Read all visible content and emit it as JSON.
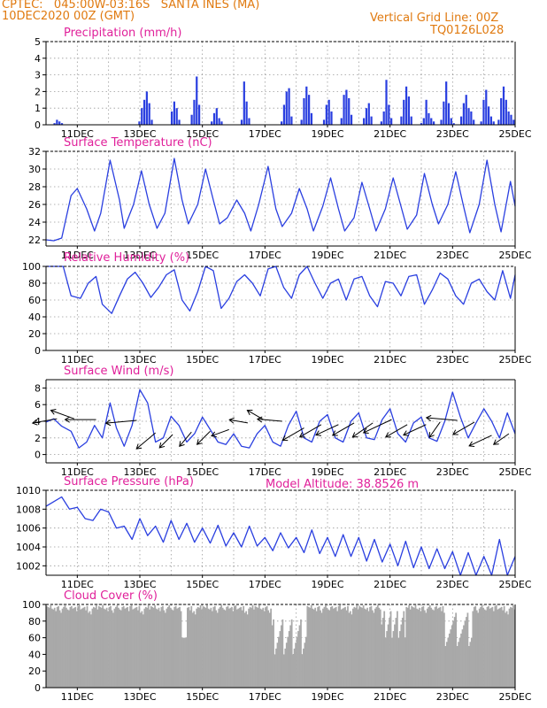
{
  "header": {
    "line1_left": "CPTEC:   045:00W-03:16S   SANTA INES (MA)",
    "line2_left": "10DEC2020 00Z (GMT)",
    "line1_right": "Vertical Grid Line: 00Z",
    "line2_right": "TQ0126L028",
    "model_altitude": "Model Altitude: 38.8526 m"
  },
  "colors": {
    "header": "#e07a10",
    "title": "#e0209a",
    "series": "#2a3fe0",
    "cloud": "#a9a9a9",
    "axis": "#000000",
    "grid": "#9a9a9a"
  },
  "x_ticks": [
    "11DEC",
    "13DEC",
    "15DEC",
    "17DEC",
    "19DEC",
    "21DEC",
    "23DEC",
    "25DEC"
  ],
  "chart_data": [
    {
      "type": "bar",
      "title": "Precipitation (mm/h)",
      "ylim": [
        0,
        5
      ],
      "yticks": [
        "0",
        "1",
        "2",
        "3",
        "4",
        "5"
      ],
      "x_start": "10DEC2020 00Z",
      "x_end": "25DEC2020 00Z",
      "step_hours": 3,
      "values": [
        0,
        0,
        0,
        0.1,
        0.3,
        0.2,
        0.1,
        0,
        0,
        0,
        0,
        0,
        0,
        0,
        0,
        0,
        0,
        0,
        0,
        0,
        0,
        0,
        0,
        0,
        0,
        0,
        0,
        0,
        0,
        0,
        0,
        0,
        0,
        0,
        0,
        0,
        0,
        0.2,
        1.0,
        1.5,
        2.0,
        1.3,
        0.3,
        0,
        0,
        0,
        0,
        0,
        0,
        0,
        0.8,
        1.4,
        1.0,
        0.3,
        0,
        0,
        0,
        0,
        0.6,
        1.5,
        2.9,
        1.2,
        0,
        0,
        0,
        0,
        0.2,
        0.7,
        1.0,
        0.4,
        0.2,
        0,
        0,
        0,
        0,
        0,
        0,
        0,
        0.3,
        2.6,
        1.4,
        0.4,
        0,
        0,
        0,
        0,
        0,
        0,
        0,
        0,
        0,
        0,
        0,
        0,
        0.2,
        1.2,
        2.0,
        2.2,
        0.5,
        0,
        0,
        0,
        0.3,
        1.6,
        2.3,
        1.8,
        0.7,
        0,
        0,
        0,
        0,
        0.3,
        1.2,
        1.5,
        0.8,
        0,
        0,
        0,
        0.4,
        1.8,
        2.1,
        1.6,
        0.6,
        0,
        0,
        0,
        0,
        0.4,
        1.0,
        1.3,
        0.5,
        0,
        0,
        0,
        0.2,
        0.8,
        2.7,
        1.2,
        0.4,
        0,
        0,
        0,
        0.5,
        1.5,
        2.3,
        1.7,
        0.5,
        0,
        0,
        0,
        0.1,
        0.4,
        1.5,
        0.7,
        0.4,
        0.2,
        0,
        0,
        0.3,
        1.4,
        2.6,
        1.3,
        0.4,
        0.1,
        0,
        0,
        0.5,
        1.3,
        1.8,
        1.0,
        0.8,
        0.3,
        0,
        0,
        0.2,
        1.5,
        2.1,
        1.1,
        0.5,
        0.2,
        0,
        0.3,
        1.6,
        2.3,
        1.5,
        0.8,
        0.6,
        0.3
      ]
    },
    {
      "type": "line",
      "title": "Surface Temperature (nC)",
      "ylim": [
        21.3,
        32
      ],
      "yticks": [
        "22",
        "24",
        "26",
        "28",
        "30",
        "32"
      ],
      "x": [
        0,
        0.25,
        0.5,
        0.8,
        1.0,
        1.3,
        1.55,
        1.75,
        2.05,
        2.35,
        2.5,
        2.8,
        3.05,
        3.3,
        3.55,
        3.8,
        4.1,
        4.35,
        4.55,
        4.85,
        5.1,
        5.35,
        5.55,
        5.8,
        6.1,
        6.35,
        6.55,
        6.8,
        7.1,
        7.35,
        7.55,
        7.85,
        8.1,
        8.35,
        8.55,
        8.85,
        9.1,
        9.35,
        9.55,
        9.85,
        10.1,
        10.35,
        10.55,
        10.85,
        11.1,
        11.35,
        11.55,
        11.85,
        12.1,
        12.35,
        12.55,
        12.85,
        13.1,
        13.35,
        13.55,
        13.85,
        14.1,
        14.35,
        14.55,
        14.85,
        15.0
      ],
      "values": [
        22.0,
        21.9,
        22.2,
        27.0,
        27.8,
        25.5,
        23.0,
        25.0,
        31.0,
        26.5,
        23.3,
        26.0,
        29.8,
        26.0,
        23.3,
        25.0,
        31.2,
        26.5,
        23.8,
        26.0,
        30.0,
        26.5,
        23.8,
        24.5,
        26.5,
        25.0,
        23.0,
        26.0,
        30.3,
        25.5,
        23.5,
        25.0,
        27.8,
        25.5,
        23.0,
        25.8,
        29.0,
        25.5,
        23.0,
        24.5,
        28.5,
        25.5,
        23.0,
        25.5,
        29.0,
        25.8,
        23.2,
        24.8,
        29.5,
        26.0,
        23.8,
        26.0,
        29.7,
        25.8,
        22.8,
        26.0,
        31.0,
        26.0,
        22.9,
        28.6,
        25.8
      ]
    },
    {
      "type": "line",
      "title": "Relative Humidity (%)",
      "ylim": [
        0,
        100
      ],
      "yticks": [
        "0",
        "20",
        "40",
        "60",
        "80",
        "100"
      ],
      "x": [
        0,
        0.3,
        0.55,
        0.8,
        1.1,
        1.35,
        1.6,
        1.8,
        2.1,
        2.35,
        2.6,
        2.85,
        3.1,
        3.35,
        3.6,
        3.85,
        4.1,
        4.35,
        4.6,
        4.85,
        5.1,
        5.35,
        5.6,
        5.85,
        6.1,
        6.35,
        6.6,
        6.85,
        7.1,
        7.35,
        7.6,
        7.85,
        8.1,
        8.35,
        8.6,
        8.85,
        9.1,
        9.35,
        9.6,
        9.85,
        10.1,
        10.35,
        10.6,
        10.85,
        11.1,
        11.35,
        11.6,
        11.85,
        12.1,
        12.35,
        12.6,
        12.85,
        13.1,
        13.35,
        13.6,
        13.85,
        14.1,
        14.35,
        14.6,
        14.85,
        15.0
      ],
      "values": [
        100,
        100,
        100,
        65,
        62,
        80,
        88,
        55,
        44,
        65,
        85,
        93,
        80,
        63,
        75,
        90,
        96,
        60,
        47,
        70,
        100,
        95,
        50,
        62,
        82,
        90,
        80,
        65,
        97,
        100,
        75,
        62,
        90,
        100,
        80,
        62,
        80,
        85,
        60,
        85,
        88,
        65,
        52,
        82,
        80,
        65,
        88,
        90,
        55,
        72,
        92,
        85,
        65,
        55,
        80,
        85,
        70,
        60,
        95,
        62,
        90
      ]
    },
    {
      "type": "line",
      "title": "Surface Wind (m/s)",
      "ylim": [
        -1,
        9
      ],
      "yticks": [
        "0",
        "2",
        "4",
        "6",
        "8"
      ],
      "x": [
        0,
        0.25,
        0.5,
        0.8,
        1.05,
        1.3,
        1.55,
        1.8,
        2.05,
        2.25,
        2.5,
        2.75,
        3.0,
        3.25,
        3.5,
        3.75,
        4.0,
        4.25,
        4.5,
        4.75,
        5.0,
        5.25,
        5.5,
        5.75,
        6.0,
        6.25,
        6.5,
        6.75,
        7.0,
        7.25,
        7.5,
        7.75,
        8.0,
        8.25,
        8.5,
        8.75,
        9.0,
        9.25,
        9.5,
        9.75,
        10.0,
        10.25,
        10.5,
        10.75,
        11.0,
        11.25,
        11.5,
        11.75,
        12.0,
        12.25,
        12.5,
        12.75,
        13.0,
        13.25,
        13.5,
        13.75,
        14.0,
        14.25,
        14.5,
        14.75,
        15.0
      ],
      "values": [
        3.9,
        4.3,
        3.4,
        2.8,
        0.8,
        1.5,
        3.5,
        2.0,
        6.2,
        3.2,
        1.0,
        3.5,
        7.8,
        6.2,
        1.5,
        2.0,
        4.6,
        3.5,
        1.5,
        2.5,
        4.5,
        3.0,
        1.5,
        1.2,
        2.5,
        1.0,
        0.8,
        2.5,
        3.5,
        1.5,
        1.0,
        3.5,
        5.2,
        2.0,
        1.5,
        4.0,
        4.8,
        2.0,
        1.5,
        4.0,
        5.0,
        2.0,
        1.8,
        4.2,
        5.5,
        2.5,
        1.5,
        3.8,
        4.5,
        2.0,
        1.6,
        4.0,
        7.5,
        4.5,
        2.0,
        3.8,
        5.5,
        4.0,
        2.0,
        5.0,
        2.5
      ],
      "vectors": {
        "x": [
          0.35,
          0.9,
          1.6,
          2.9,
          3.5,
          4.05,
          4.65,
          5.25,
          5.85,
          6.45,
          6.95,
          7.55,
          8.25,
          8.8,
          9.35,
          9.85,
          10.45,
          11.05,
          11.55,
          12.15,
          12.6,
          13.15,
          13.7,
          14.25,
          14.8
        ],
        "y": [
          4.3,
          4.3,
          4.2,
          4.1,
          2.6,
          2.4,
          2.7,
          2.8,
          3.0,
          3.8,
          4.2,
          4.0,
          3.2,
          3.6,
          3.6,
          3.8,
          3.8,
          4.2,
          3.6,
          3.6,
          3.9,
          4.1,
          3.9,
          2.3,
          2.5
        ],
        "dir_deg": [
          190,
          160,
          180,
          185,
          220,
          225,
          230,
          225,
          200,
          170,
          150,
          175,
          210,
          210,
          205,
          210,
          215,
          205,
          210,
          205,
          235,
          175,
          210,
          205,
          215
        ],
        "mag": [
          4,
          4,
          5,
          5,
          4,
          3,
          3,
          3,
          3,
          3,
          3,
          4,
          4,
          4,
          4,
          4,
          4,
          5,
          4,
          4,
          3,
          5,
          4,
          4,
          3
        ]
      }
    },
    {
      "type": "line",
      "title": "Surface Pressure (hPa)",
      "ylim": [
        1001,
        1010
      ],
      "yticks": [
        "1002",
        "1004",
        "1006",
        "1008",
        "1010"
      ],
      "x": [
        0,
        0.25,
        0.5,
        0.75,
        1.0,
        1.25,
        1.5,
        1.75,
        2.0,
        2.25,
        2.5,
        2.75,
        3.0,
        3.25,
        3.5,
        3.75,
        4.0,
        4.25,
        4.5,
        4.75,
        5.0,
        5.25,
        5.5,
        5.75,
        6.0,
        6.25,
        6.5,
        6.75,
        7.0,
        7.25,
        7.5,
        7.75,
        8.0,
        8.25,
        8.5,
        8.75,
        9.0,
        9.25,
        9.5,
        9.75,
        10.0,
        10.25,
        10.5,
        10.75,
        11.0,
        11.25,
        11.5,
        11.75,
        12.0,
        12.25,
        12.5,
        12.75,
        13.0,
        13.25,
        13.5,
        13.75,
        14.0,
        14.25,
        14.5,
        14.75,
        15.0
      ],
      "values": [
        1008.3,
        1008.8,
        1009.3,
        1008.0,
        1008.2,
        1007.0,
        1006.8,
        1008.0,
        1007.7,
        1006.0,
        1006.2,
        1004.8,
        1007.0,
        1005.2,
        1006.2,
        1004.5,
        1006.8,
        1004.8,
        1006.5,
        1004.5,
        1006.0,
        1004.4,
        1006.3,
        1004.1,
        1005.5,
        1004.0,
        1006.2,
        1004.1,
        1005.0,
        1003.6,
        1005.5,
        1003.9,
        1005.0,
        1003.4,
        1005.8,
        1003.3,
        1005.0,
        1003.0,
        1005.3,
        1003.0,
        1005.0,
        1002.5,
        1004.8,
        1002.4,
        1004.3,
        1002.0,
        1004.6,
        1001.8,
        1004.0,
        1001.7,
        1003.8,
        1001.7,
        1003.5,
        1001.0,
        1003.4,
        1000.8,
        1003.0,
        1000.8,
        1004.8,
        1000.8,
        1003.0
      ]
    },
    {
      "type": "bar",
      "title": "Cloud Cover (%)",
      "ylim": [
        0,
        100
      ],
      "yticks": [
        "0",
        "20",
        "40",
        "60",
        "80",
        "100"
      ],
      "x_start": "10DEC2020 00Z",
      "x_end": "25DEC2020 00Z",
      "step_hours": 1,
      "values_description": "dense hourly bars",
      "pattern": [
        98,
        97,
        96,
        99,
        95,
        94,
        96,
        92,
        97,
        98,
        93,
        90,
        95,
        97,
        99,
        96,
        94,
        93,
        97,
        98,
        95,
        96,
        97,
        92,
        98,
        99,
        94,
        95,
        96,
        97,
        93,
        98,
        90,
        92,
        88,
        95,
        97,
        96,
        99,
        94
      ]
    }
  ]
}
